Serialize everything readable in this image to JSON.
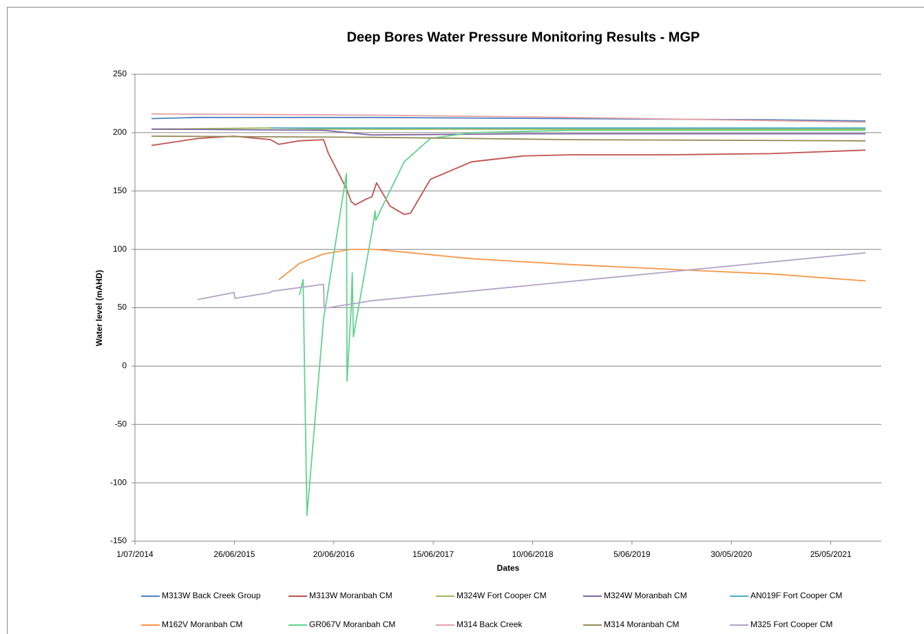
{
  "chart_data": {
    "type": "line",
    "title": "Deep Bores Water Pressure Monitoring Results - MGP",
    "x_label": "Dates",
    "y_label": "Water level (mAHD)",
    "xlim": [
      "1/07/2014",
      "24/11/2021"
    ],
    "xticks": [
      "1/07/2014",
      "26/06/2015",
      "20/06/2016",
      "15/06/2017",
      "10/06/2018",
      "5/06/2019",
      "30/05/2020",
      "25/05/2021"
    ],
    "ylim": [
      -150,
      250
    ],
    "yticks": [
      -150,
      -100,
      -50,
      0,
      50,
      100,
      150,
      200,
      250
    ],
    "grid": true,
    "series": [
      {
        "name": "M313W Back Creek Group",
        "color": "#4f81bd",
        "x": [
          "30/08/2014",
          "13/02/2015",
          "5/11/2016",
          "24/10/2018",
          "20/10/2020",
          "28/09/2021"
        ],
        "values": [
          212,
          213,
          213,
          212,
          211,
          210
        ]
      },
      {
        "name": "M313W Moranbah CM",
        "color": "#c0504d",
        "x": [
          "30/08/2014",
          "13/02/2015",
          "25/06/2015",
          "4/11/2015",
          "4/12/2015",
          "17/02/2016",
          "14/05/2016",
          "1/06/2016",
          "5/08/2016",
          "22/08/2016",
          "6/09/2016",
          "15/10/2016",
          "5/11/2016",
          "22/11/2016",
          "10/01/2017",
          "2/03/2017",
          "25/03/2017",
          "5/06/2017",
          "1/11/2017",
          "7/05/2018",
          "24/10/2018",
          "13/10/2019",
          "20/10/2020",
          "28/09/2021"
        ],
        "values": [
          189,
          195,
          197,
          194,
          190,
          193,
          194,
          182,
          152,
          141,
          138,
          143,
          145,
          157,
          137,
          130,
          131,
          160,
          175,
          180,
          181,
          181,
          182,
          185
        ]
      },
      {
        "name": "M324W Fort Cooper CM",
        "color": "#9bbb59",
        "x": [
          "30/08/2014",
          "4/11/2015",
          "14/05/2016",
          "28/09/2021"
        ],
        "values": [
          203,
          204,
          203,
          203
        ]
      },
      {
        "name": "M324W Moranbah CM",
        "color": "#8064a2",
        "x": [
          "30/08/2014",
          "14/05/2016",
          "5/11/2016",
          "7/05/2018",
          "28/09/2021"
        ],
        "values": [
          203,
          202,
          198,
          199,
          199
        ]
      },
      {
        "name": "AN019F Fort Cooper CM",
        "color": "#4bacc6",
        "x": [
          "4/11/2015",
          "28/09/2021"
        ],
        "values": [
          204,
          204
        ]
      },
      {
        "name": "M162V Moranbah CM",
        "color": "#f79646",
        "x": [
          "4/12/2015",
          "17/02/2016",
          "14/05/2016",
          "22/08/2016",
          "17/11/2016",
          "1/11/2017",
          "24/10/2018",
          "13/10/2019",
          "20/10/2020",
          "28/09/2021"
        ],
        "values": [
          74,
          88,
          96,
          100,
          100,
          92,
          87,
          83,
          79,
          73
        ]
      },
      {
        "name": "GR067V Moranbah CM",
        "color": "#5fd38d",
        "x": [
          "17/02/2016",
          "1/03/2016",
          "15/03/2016",
          "14/05/2016",
          "5/08/2016",
          "7/08/2016",
          "22/08/2016",
          "26/08/2016",
          "30/08/2016",
          "5/11/2016",
          "17/11/2016",
          "19/11/2016",
          "2/03/2017",
          "5/06/2017",
          "1/11/2017",
          "24/10/2018",
          "28/09/2021"
        ],
        "values": [
          61,
          74,
          -128,
          40,
          165,
          -13,
          50,
          80,
          25,
          115,
          133,
          125,
          175,
          195,
          200,
          202,
          202
        ]
      },
      {
        "name": "M314 Back Creek",
        "color": "#e6a0a4",
        "x": [
          "30/08/2014",
          "5/11/2016",
          "24/10/2018",
          "28/09/2021"
        ],
        "values": [
          216,
          215,
          213,
          209
        ]
      },
      {
        "name": "M314 Moranbah CM",
        "color": "#948a54",
        "x": [
          "30/08/2014",
          "5/11/2016",
          "1/11/2017",
          "24/10/2018",
          "28/09/2021"
        ],
        "values": [
          197,
          196,
          195,
          194,
          193
        ]
      },
      {
        "name": "M325 Fort Cooper CM",
        "color": "#b3a2c7",
        "x": [
          "13/02/2015",
          "25/06/2015",
          "28/06/2015",
          "4/11/2015",
          "8/11/2015",
          "14/05/2016",
          "16/05/2016",
          "1/06/2016",
          "5/11/2016",
          "28/09/2021"
        ],
        "values": [
          57,
          63,
          58,
          63,
          64,
          70,
          50,
          50,
          56,
          97
        ]
      }
    ]
  }
}
